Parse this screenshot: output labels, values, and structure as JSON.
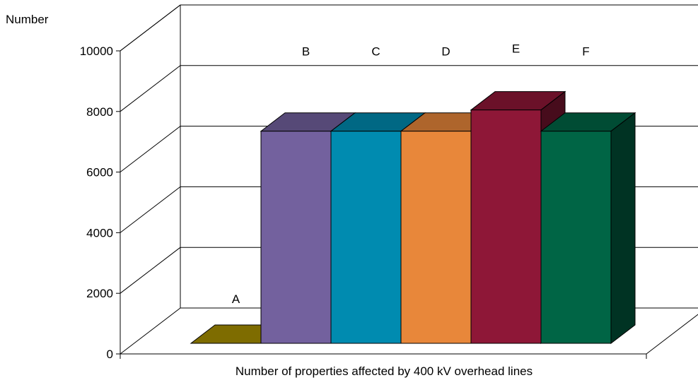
{
  "chart_data": {
    "type": "bar",
    "title": "",
    "ylabel": "Number",
    "xlabel": "Number of properties affected by 400 kV overhead lines",
    "ylim": [
      0,
      10000
    ],
    "yticks": [
      0,
      2000,
      4000,
      6000,
      8000,
      10000
    ],
    "grid": true,
    "legend": "none",
    "three_d": true,
    "categories": [
      "A",
      "B",
      "C",
      "D",
      "E",
      "F"
    ],
    "values": [
      0,
      7000,
      7000,
      7000,
      7700,
      7000
    ],
    "colors": [
      "#A89000",
      "#73619E",
      "#008BB0",
      "#E8873A",
      "#8E1737",
      "#006545"
    ]
  }
}
